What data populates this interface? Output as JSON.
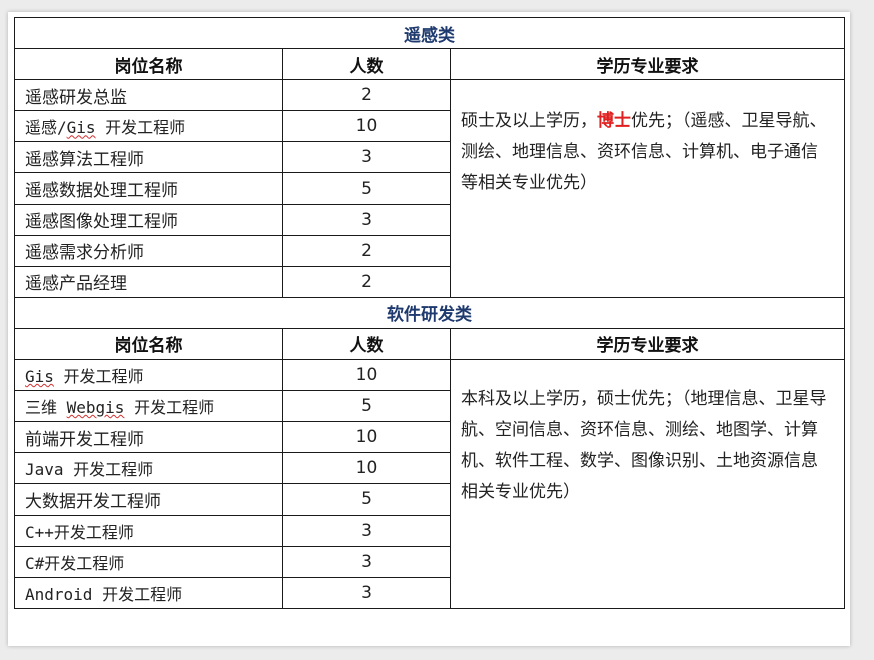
{
  "sections": [
    {
      "title": "遥感类",
      "headers": [
        "岗位名称",
        "人数",
        "学历专业要求"
      ],
      "rows": [
        {
          "name": "遥感研发总监",
          "count": "2"
        },
        {
          "name": "遥感/Gis 开发工程师",
          "count": "10"
        },
        {
          "name": "遥感算法工程师",
          "count": "3"
        },
        {
          "name": "遥感数据处理工程师",
          "count": "5"
        },
        {
          "name": "遥感图像处理工程师",
          "count": "3"
        },
        {
          "name": "遥感需求分析师",
          "count": "2"
        },
        {
          "name": "遥感产品经理",
          "count": "2"
        }
      ],
      "requirement": {
        "before": "硕士及以上学历，",
        "highlight": "博士",
        "after": "优先；（遥感、卫星导航、测绘、地理信息、资环信息、计算机、电子通信等相关专业优先）"
      }
    },
    {
      "title": "软件研发类",
      "headers": [
        "岗位名称",
        "人数",
        "学历专业要求"
      ],
      "rows": [
        {
          "name": "Gis 开发工程师",
          "count": "10"
        },
        {
          "name": "三维 Webgis 开发工程师",
          "count": "5"
        },
        {
          "name": "前端开发工程师",
          "count": "10"
        },
        {
          "name": "Java 开发工程师",
          "count": "10"
        },
        {
          "name": "大数据开发工程师",
          "count": "5"
        },
        {
          "name": "C++开发工程师",
          "count": "3"
        },
        {
          "name": "C#开发工程师",
          "count": "3"
        },
        {
          "name": "Android 开发工程师",
          "count": "3"
        }
      ],
      "requirement": {
        "text": "本科及以上学历，硕士优先；（地理信息、卫星导航、空间信息、资环信息、测绘、地图学、计算机、软件工程、数学、图像识别、土地资源信息相关专业优先）"
      }
    }
  ],
  "colors": {
    "section_title": "#1f3a6e",
    "highlight": "#e02020"
  }
}
